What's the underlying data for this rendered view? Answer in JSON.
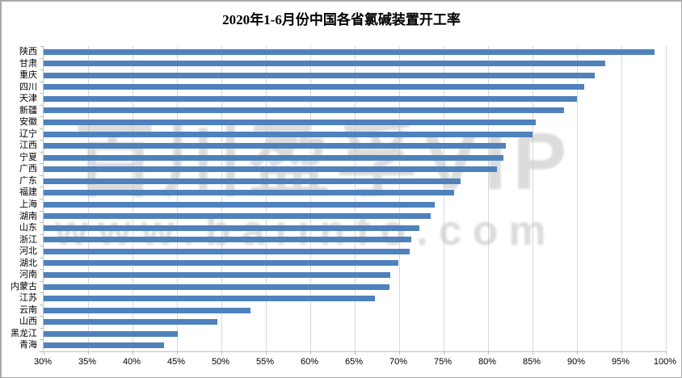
{
  "title": "2020年1-6月份中国各省氯碱装置开工率",
  "watermark": {
    "line1": "百川盈孚VIP",
    "line2": "www.baiinfo.com"
  },
  "colors": {
    "bar": "#4F81BD",
    "gridline": "#D8D8D8",
    "axis": "#BFBFBF",
    "frame_border": "#A9A9A9",
    "watermark": "#C0C0C0",
    "text": "#000000"
  },
  "chart_data": {
    "type": "bar",
    "orientation": "horizontal",
    "title": "2020年1-6月份中国各省氯碱装置开工率",
    "categories": [
      "陕西",
      "甘肃",
      "重庆",
      "四川",
      "天津",
      "新疆",
      "安徽",
      "辽宁",
      "江西",
      "宁夏",
      "广西",
      "广东",
      "福建",
      "上海",
      "湖南",
      "山东",
      "浙江",
      "河北",
      "湖北",
      "河南",
      "内蒙古",
      "江苏",
      "云南",
      "山西",
      "黑龙江",
      "青海"
    ],
    "values": [
      98.7,
      93.2,
      92.0,
      90.8,
      90.0,
      88.5,
      85.4,
      85.0,
      82.0,
      81.7,
      81.0,
      76.9,
      76.2,
      74.0,
      73.5,
      72.3,
      71.4,
      71.2,
      69.9,
      69.0,
      68.9,
      67.3,
      53.3,
      49.5,
      45.1,
      43.5
    ],
    "x_ticks": [
      30,
      35,
      40,
      45,
      50,
      55,
      60,
      65,
      70,
      75,
      80,
      85,
      90,
      95,
      100
    ],
    "x_tick_labels": [
      "30%",
      "35%",
      "40%",
      "45%",
      "50%",
      "55%",
      "60%",
      "65%",
      "70%",
      "75%",
      "80%",
      "85%",
      "90%",
      "95%",
      "100%"
    ],
    "xlim": [
      30,
      100
    ],
    "xlabel": "",
    "ylabel": "",
    "grid": true,
    "legend": false
  }
}
